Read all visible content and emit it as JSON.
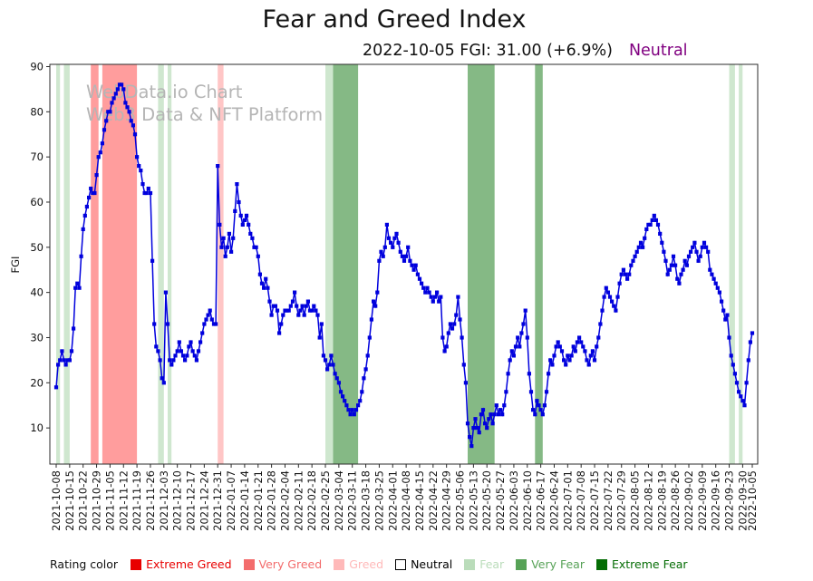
{
  "title": "Fear and Greed Index",
  "subtitle": {
    "text": "2022-10-05 FGI: 31.00 (+6.9%)",
    "rating": "Neutral",
    "rating_color": "#800080"
  },
  "watermark": {
    "line1": "WebData.io Chart",
    "line2": "Web3 Data & NFT Platform"
  },
  "ylabel": "FGI",
  "legend": {
    "title": "Rating color",
    "items": [
      {
        "label": "Extreme Greed",
        "color": "#e80000"
      },
      {
        "label": "Very Greed",
        "color": "#f36c6c"
      },
      {
        "label": "Greed",
        "color": "#ffb9b9"
      },
      {
        "label": "Neutral",
        "color": "#ffffff",
        "text_color": "#000000",
        "border": "#000000"
      },
      {
        "label": "Fear",
        "color": "#badcba"
      },
      {
        "label": "Very Fear",
        "color": "#57a257"
      },
      {
        "label": "Extreme Fear",
        "color": "#056d05"
      }
    ]
  },
  "chart_data": {
    "type": "line",
    "title": "Fear and Greed Index",
    "series_name": "FGI",
    "ylabel": "FGI",
    "xlabel": "",
    "line_color": "#0000dd",
    "marker": "square",
    "legend_position": "bottom",
    "start_date": "2021-10-08",
    "end_date": "2022-10-05",
    "frequency": "daily",
    "ylim": [
      2,
      90.5
    ],
    "y_ticks": [
      10,
      20,
      30,
      40,
      50,
      60,
      70,
      80,
      90
    ],
    "x_tick_labels": [
      "2021-10-08",
      "2021-10-15",
      "2021-10-22",
      "2021-10-29",
      "2021-11-05",
      "2021-11-12",
      "2021-11-19",
      "2021-11-26",
      "2021-12-03",
      "2021-12-10",
      "2021-12-17",
      "2021-12-24",
      "2021-12-31",
      "2022-01-07",
      "2022-01-14",
      "2022-01-21",
      "2022-01-28",
      "2022-02-04",
      "2022-02-11",
      "2022-02-18",
      "2022-02-25",
      "2022-03-04",
      "2022-03-11",
      "2022-03-18",
      "2022-03-25",
      "2022-04-01",
      "2022-04-08",
      "2022-04-15",
      "2022-04-22",
      "2022-04-29",
      "2022-05-06",
      "2022-05-13",
      "2022-05-20",
      "2022-05-27",
      "2022-06-03",
      "2022-06-10",
      "2022-06-17",
      "2022-06-24",
      "2022-07-01",
      "2022-07-08",
      "2022-07-15",
      "2022-07-22",
      "2022-07-29",
      "2022-08-05",
      "2022-08-12",
      "2022-08-19",
      "2022-08-26",
      "2022-09-02",
      "2022-09-09",
      "2022-09-16",
      "2022-09-23",
      "2022-09-30",
      "2022-10-05"
    ],
    "values": [
      19,
      24,
      25,
      27,
      25,
      24,
      25,
      25,
      27,
      32,
      41,
      42,
      41,
      48,
      54,
      57,
      59,
      61,
      63,
      62,
      62,
      66,
      70,
      71,
      73,
      76,
      78,
      80,
      80,
      82,
      83,
      84,
      85,
      86,
      86,
      85,
      82,
      81,
      80,
      78,
      77,
      75,
      70,
      68,
      67,
      64,
      62,
      62,
      63,
      62,
      47,
      33,
      28,
      27,
      25,
      21,
      20,
      40,
      33,
      25,
      24,
      25,
      26,
      27,
      29,
      27,
      26,
      25,
      26,
      28,
      29,
      27,
      26,
      25,
      27,
      29,
      31,
      33,
      34,
      35,
      36,
      34,
      33,
      33,
      68,
      55,
      50,
      52,
      48,
      50,
      53,
      49,
      52,
      58,
      64,
      60,
      57,
      55,
      56,
      57,
      55,
      53,
      52,
      50,
      50,
      48,
      44,
      42,
      41,
      43,
      41,
      38,
      35,
      37,
      37,
      36,
      31,
      33,
      35,
      36,
      36,
      36,
      37,
      38,
      40,
      37,
      35,
      36,
      37,
      35,
      37,
      38,
      36,
      36,
      37,
      36,
      35,
      30,
      33,
      26,
      25,
      23,
      24,
      26,
      24,
      22,
      21,
      20,
      18,
      17,
      16,
      15,
      14,
      13,
      14,
      13,
      14,
      15,
      16,
      18,
      21,
      23,
      26,
      30,
      34,
      38,
      37,
      40,
      47,
      49,
      48,
      50,
      55,
      52,
      51,
      50,
      52,
      53,
      51,
      49,
      48,
      47,
      48,
      50,
      47,
      46,
      45,
      46,
      44,
      43,
      42,
      41,
      40,
      41,
      40,
      39,
      38,
      39,
      40,
      38,
      39,
      30,
      27,
      28,
      31,
      33,
      32,
      33,
      35,
      39,
      34,
      30,
      24,
      20,
      11,
      8,
      6,
      10,
      12,
      10,
      9,
      13,
      14,
      11,
      10,
      12,
      13,
      11,
      13,
      15,
      13,
      14,
      13,
      15,
      18,
      22,
      25,
      27,
      26,
      28,
      30,
      28,
      31,
      33,
      36,
      30,
      22,
      18,
      14,
      13,
      16,
      15,
      14,
      13,
      15,
      18,
      22,
      25,
      24,
      26,
      28,
      29,
      28,
      27,
      25,
      24,
      26,
      25,
      26,
      28,
      27,
      29,
      30,
      29,
      28,
      27,
      25,
      24,
      26,
      27,
      25,
      28,
      30,
      33,
      36,
      39,
      41,
      40,
      39,
      38,
      37,
      36,
      39,
      42,
      44,
      45,
      44,
      43,
      44,
      46,
      47,
      48,
      49,
      50,
      51,
      50,
      52,
      54,
      55,
      55,
      56,
      57,
      56,
      55,
      53,
      51,
      49,
      47,
      44,
      45,
      46,
      48,
      46,
      43,
      42,
      44,
      45,
      47,
      46,
      48,
      49,
      50,
      51,
      49,
      47,
      48,
      50,
      51,
      50,
      49,
      45,
      44,
      43,
      42,
      41,
      40,
      38,
      36,
      34,
      35,
      30,
      26,
      24,
      22,
      20,
      18,
      17,
      16,
      15,
      20,
      25,
      29,
      31
    ],
    "band_colors": {
      "fear": "#cfe7cf",
      "very_fear": "#85b985",
      "greed": "#ffc6c6",
      "very_greed": "#ff9d9d"
    },
    "bands": [
      {
        "start": "2021-10-08",
        "end": "2021-10-10",
        "rating": "fear"
      },
      {
        "start": "2021-10-12",
        "end": "2021-10-15",
        "rating": "fear"
      },
      {
        "start": "2021-10-26",
        "end": "2021-10-30",
        "rating": "very_greed"
      },
      {
        "start": "2021-11-01",
        "end": "2021-11-19",
        "rating": "very_greed"
      },
      {
        "start": "2021-11-30",
        "end": "2021-12-03",
        "rating": "fear"
      },
      {
        "start": "2021-12-05",
        "end": "2021-12-07",
        "rating": "fear"
      },
      {
        "start": "2021-12-31",
        "end": "2022-01-03",
        "rating": "greed"
      },
      {
        "start": "2022-02-25",
        "end": "2022-03-01",
        "rating": "fear"
      },
      {
        "start": "2022-03-01",
        "end": "2022-03-14",
        "rating": "very_fear"
      },
      {
        "start": "2022-05-10",
        "end": "2022-05-24",
        "rating": "very_fear"
      },
      {
        "start": "2022-06-14",
        "end": "2022-06-18",
        "rating": "very_fear"
      },
      {
        "start": "2022-09-23",
        "end": "2022-09-26",
        "rating": "fear"
      },
      {
        "start": "2022-09-28",
        "end": "2022-09-30",
        "rating": "fear"
      }
    ]
  }
}
